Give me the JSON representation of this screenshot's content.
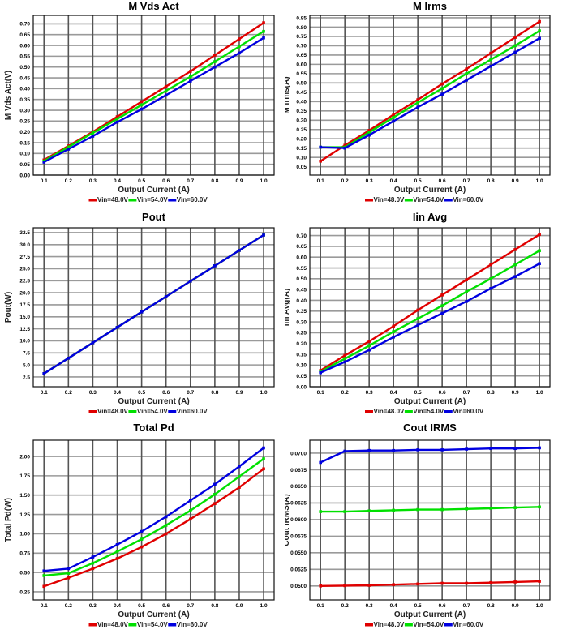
{
  "chart_data": [
    {
      "type": "line",
      "title": "M Vds Act",
      "xlabel": "Output Current (A)",
      "ylabel": "M Vds Act(V)",
      "x": [
        0.1,
        0.2,
        0.3,
        0.4,
        0.5,
        0.6,
        0.7,
        0.8,
        0.9,
        1.0
      ],
      "xticks": [
        "0.1",
        "0.2",
        "0.3",
        "0.4",
        "0.5",
        "0.6",
        "0.7",
        "0.8",
        "0.9",
        "1.0"
      ],
      "xlim": [
        0.056,
        1.043
      ],
      "ylim": [
        0,
        0.739
      ],
      "yticks": [
        "0.00",
        "0.05",
        "0.10",
        "0.15",
        "0.20",
        "0.25",
        "0.30",
        "0.35",
        "0.40",
        "0.45",
        "0.50",
        "0.55",
        "0.60",
        "0.65",
        "0.70"
      ],
      "ytick_values": [
        0,
        0.05,
        0.1,
        0.15,
        0.2,
        0.25,
        0.3,
        0.35,
        0.4,
        0.45,
        0.5,
        0.55,
        0.6,
        0.65,
        0.7
      ],
      "grid": true,
      "legend_position": "bottom",
      "series": [
        {
          "name": "Vin=48.0V",
          "color": "#e00000",
          "values": [
            0.07,
            0.135,
            0.2,
            0.27,
            0.34,
            0.41,
            0.48,
            0.555,
            0.63,
            0.705
          ]
        },
        {
          "name": "Vin=54.0V",
          "color": "#00e000",
          "values": [
            0.065,
            0.13,
            0.195,
            0.26,
            0.325,
            0.39,
            0.455,
            0.525,
            0.595,
            0.665
          ]
        },
        {
          "name": "Vin=60.0V",
          "color": "#0000e0",
          "values": [
            0.06,
            0.12,
            0.18,
            0.245,
            0.305,
            0.37,
            0.435,
            0.5,
            0.565,
            0.635
          ]
        }
      ]
    },
    {
      "type": "line",
      "title": "M Irms",
      "xlabel": "Output Current (A)",
      "ylabel": "M Irms(A)",
      "x": [
        0.1,
        0.2,
        0.3,
        0.4,
        0.5,
        0.6,
        0.7,
        0.8,
        0.9,
        1.0
      ],
      "xticks": [
        "0.1",
        "0.2",
        "0.3",
        "0.4",
        "0.5",
        "0.6",
        "0.7",
        "0.8",
        "0.9",
        "1.0"
      ],
      "xlim": [
        0.056,
        1.043
      ],
      "ylim": [
        0.005,
        0.863
      ],
      "yticks": [
        "0.05",
        "0.10",
        "0.15",
        "0.20",
        "0.25",
        "0.30",
        "0.35",
        "0.40",
        "0.45",
        "0.50",
        "0.55",
        "0.60",
        "0.65",
        "0.70",
        "0.75",
        "0.80",
        "0.85"
      ],
      "ytick_values": [
        0.05,
        0.1,
        0.15,
        0.2,
        0.25,
        0.3,
        0.35,
        0.4,
        0.45,
        0.5,
        0.55,
        0.6,
        0.65,
        0.7,
        0.75,
        0.8,
        0.85
      ],
      "grid": true,
      "legend_position": "bottom",
      "series": [
        {
          "name": "Vin=48.0V",
          "color": "#e00000",
          "values": [
            0.08,
            0.165,
            0.245,
            0.33,
            0.41,
            0.495,
            0.575,
            0.66,
            0.745,
            0.83
          ]
        },
        {
          "name": "Vin=54.0V",
          "color": "#00e000",
          "values": [
            0.155,
            0.155,
            0.235,
            0.315,
            0.395,
            0.47,
            0.55,
            0.625,
            0.7,
            0.78
          ]
        },
        {
          "name": "Vin=60.0V",
          "color": "#0000e0",
          "values": [
            0.155,
            0.15,
            0.22,
            0.295,
            0.37,
            0.44,
            0.515,
            0.59,
            0.665,
            0.74
          ]
        }
      ]
    },
    {
      "type": "line",
      "title": "Pout",
      "xlabel": "Output Current (A)",
      "ylabel": "Pout(W)",
      "x": [
        0.1,
        0.2,
        0.3,
        0.4,
        0.5,
        0.6,
        0.7,
        0.8,
        0.9,
        1.0
      ],
      "xticks": [
        "0.1",
        "0.2",
        "0.3",
        "0.4",
        "0.5",
        "0.6",
        "0.7",
        "0.8",
        "0.9",
        "1.0"
      ],
      "xlim": [
        0.056,
        1.043
      ],
      "ylim": [
        0.47,
        33.5
      ],
      "yticks": [
        "2.5",
        "5.0",
        "7.5",
        "10.0",
        "12.5",
        "15.0",
        "17.5",
        "20.0",
        "22.5",
        "25.0",
        "27.5",
        "30.0",
        "32.5"
      ],
      "ytick_values": [
        2.5,
        5,
        7.5,
        10,
        12.5,
        15,
        17.5,
        20,
        22.5,
        25,
        27.5,
        30,
        32.5
      ],
      "grid": true,
      "legend_position": "bottom",
      "series": [
        {
          "name": "Vin=48.0V",
          "color": "#e00000",
          "values": [
            3.2,
            6.4,
            9.6,
            12.8,
            16.0,
            19.2,
            22.4,
            25.6,
            28.8,
            32.0
          ]
        },
        {
          "name": "Vin=54.0V",
          "color": "#00e000",
          "values": [
            3.2,
            6.4,
            9.6,
            12.8,
            16.0,
            19.2,
            22.4,
            25.6,
            28.8,
            32.0
          ]
        },
        {
          "name": "Vin=60.0V",
          "color": "#0000e0",
          "values": [
            3.2,
            6.4,
            9.6,
            12.8,
            16.0,
            19.2,
            22.4,
            25.6,
            28.8,
            32.0
          ]
        }
      ]
    },
    {
      "type": "line",
      "title": "Iin Avg",
      "xlabel": "Output Current (A)",
      "ylabel": "Iin Avg(A)",
      "x": [
        0.1,
        0.2,
        0.3,
        0.4,
        0.5,
        0.6,
        0.7,
        0.8,
        0.9,
        1.0
      ],
      "xticks": [
        "0.1",
        "0.2",
        "0.3",
        "0.4",
        "0.5",
        "0.6",
        "0.7",
        "0.8",
        "0.9",
        "1.0"
      ],
      "xlim": [
        0.056,
        1.043
      ],
      "ylim": [
        0,
        0.736
      ],
      "yticks": [
        "0.00",
        "0.05",
        "0.10",
        "0.15",
        "0.20",
        "0.25",
        "0.30",
        "0.35",
        "0.40",
        "0.45",
        "0.50",
        "0.55",
        "0.60",
        "0.65",
        "0.70"
      ],
      "ytick_values": [
        0,
        0.05,
        0.1,
        0.15,
        0.2,
        0.25,
        0.3,
        0.35,
        0.4,
        0.45,
        0.5,
        0.55,
        0.6,
        0.65,
        0.7
      ],
      "grid": true,
      "legend_position": "bottom",
      "series": [
        {
          "name": "Vin=48.0V",
          "color": "#e00000",
          "values": [
            0.075,
            0.145,
            0.21,
            0.28,
            0.355,
            0.425,
            0.495,
            0.565,
            0.635,
            0.705
          ]
        },
        {
          "name": "Vin=54.0V",
          "color": "#00e000",
          "values": [
            0.07,
            0.13,
            0.19,
            0.255,
            0.315,
            0.375,
            0.44,
            0.5,
            0.565,
            0.63
          ]
        },
        {
          "name": "Vin=60.0V",
          "color": "#0000e0",
          "values": [
            0.065,
            0.115,
            0.17,
            0.23,
            0.285,
            0.34,
            0.395,
            0.455,
            0.51,
            0.57
          ]
        }
      ]
    },
    {
      "type": "line",
      "title": "Total Pd",
      "xlabel": "Output Current (A)",
      "ylabel": "Total Pd(W)",
      "x": [
        0.1,
        0.2,
        0.3,
        0.4,
        0.5,
        0.6,
        0.7,
        0.8,
        0.9,
        1.0
      ],
      "xticks": [
        "0.1",
        "0.2",
        "0.3",
        "0.4",
        "0.5",
        "0.6",
        "0.7",
        "0.8",
        "0.9",
        "1.0"
      ],
      "xlim": [
        0.056,
        1.043
      ],
      "ylim": [
        0.145,
        2.21
      ],
      "yticks": [
        "0.25",
        "0.50",
        "0.75",
        "1.00",
        "1.25",
        "1.50",
        "1.75",
        "2.00"
      ],
      "ytick_values": [
        0.25,
        0.5,
        0.75,
        1.0,
        1.25,
        1.5,
        1.75,
        2.0
      ],
      "grid": true,
      "legend_position": "bottom",
      "series": [
        {
          "name": "Vin=48.0V",
          "color": "#e00000",
          "values": [
            0.32,
            0.43,
            0.55,
            0.68,
            0.83,
            1.0,
            1.19,
            1.39,
            1.6,
            1.84
          ]
        },
        {
          "name": "Vin=54.0V",
          "color": "#00e000",
          "values": [
            0.46,
            0.49,
            0.62,
            0.77,
            0.93,
            1.11,
            1.3,
            1.51,
            1.74,
            1.97
          ]
        },
        {
          "name": "Vin=60.0V",
          "color": "#0000e0",
          "values": [
            0.52,
            0.55,
            0.7,
            0.86,
            1.03,
            1.22,
            1.43,
            1.64,
            1.87,
            2.11
          ]
        }
      ]
    },
    {
      "type": "line",
      "title": "Cout IRMS",
      "xlabel": "Output Current (A)",
      "ylabel": "Cout IRMS(A)",
      "x": [
        0.1,
        0.2,
        0.3,
        0.4,
        0.5,
        0.6,
        0.7,
        0.8,
        0.9,
        1.0
      ],
      "xticks": [
        "0.1",
        "0.2",
        "0.3",
        "0.4",
        "0.5",
        "0.6",
        "0.7",
        "0.8",
        "0.9",
        "1.0"
      ],
      "xlim": [
        0.056,
        1.043
      ],
      "ylim": [
        0.0479,
        0.07195
      ],
      "yticks": [
        "0.0500",
        "0.0525",
        "0.0550",
        "0.0575",
        "0.0600",
        "0.0625",
        "0.0650",
        "0.0675",
        "0.0700"
      ],
      "ytick_values": [
        0.05,
        0.0525,
        0.055,
        0.0575,
        0.06,
        0.0625,
        0.065,
        0.0675,
        0.07
      ],
      "grid": true,
      "legend_position": "bottom",
      "series": [
        {
          "name": "Vin=48.0V",
          "color": "#e00000",
          "values": [
            0.05,
            0.05005,
            0.0501,
            0.0502,
            0.0503,
            0.0504,
            0.0504,
            0.0505,
            0.0506,
            0.0507
          ]
        },
        {
          "name": "Vin=54.0V",
          "color": "#00e000",
          "values": [
            0.0612,
            0.0612,
            0.0613,
            0.0614,
            0.0615,
            0.0615,
            0.0616,
            0.0617,
            0.0618,
            0.0619
          ]
        },
        {
          "name": "Vin=60.0V",
          "color": "#0000e0",
          "values": [
            0.0686,
            0.0703,
            0.0704,
            0.0704,
            0.0705,
            0.0705,
            0.0706,
            0.0707,
            0.0707,
            0.0708
          ]
        }
      ]
    }
  ]
}
